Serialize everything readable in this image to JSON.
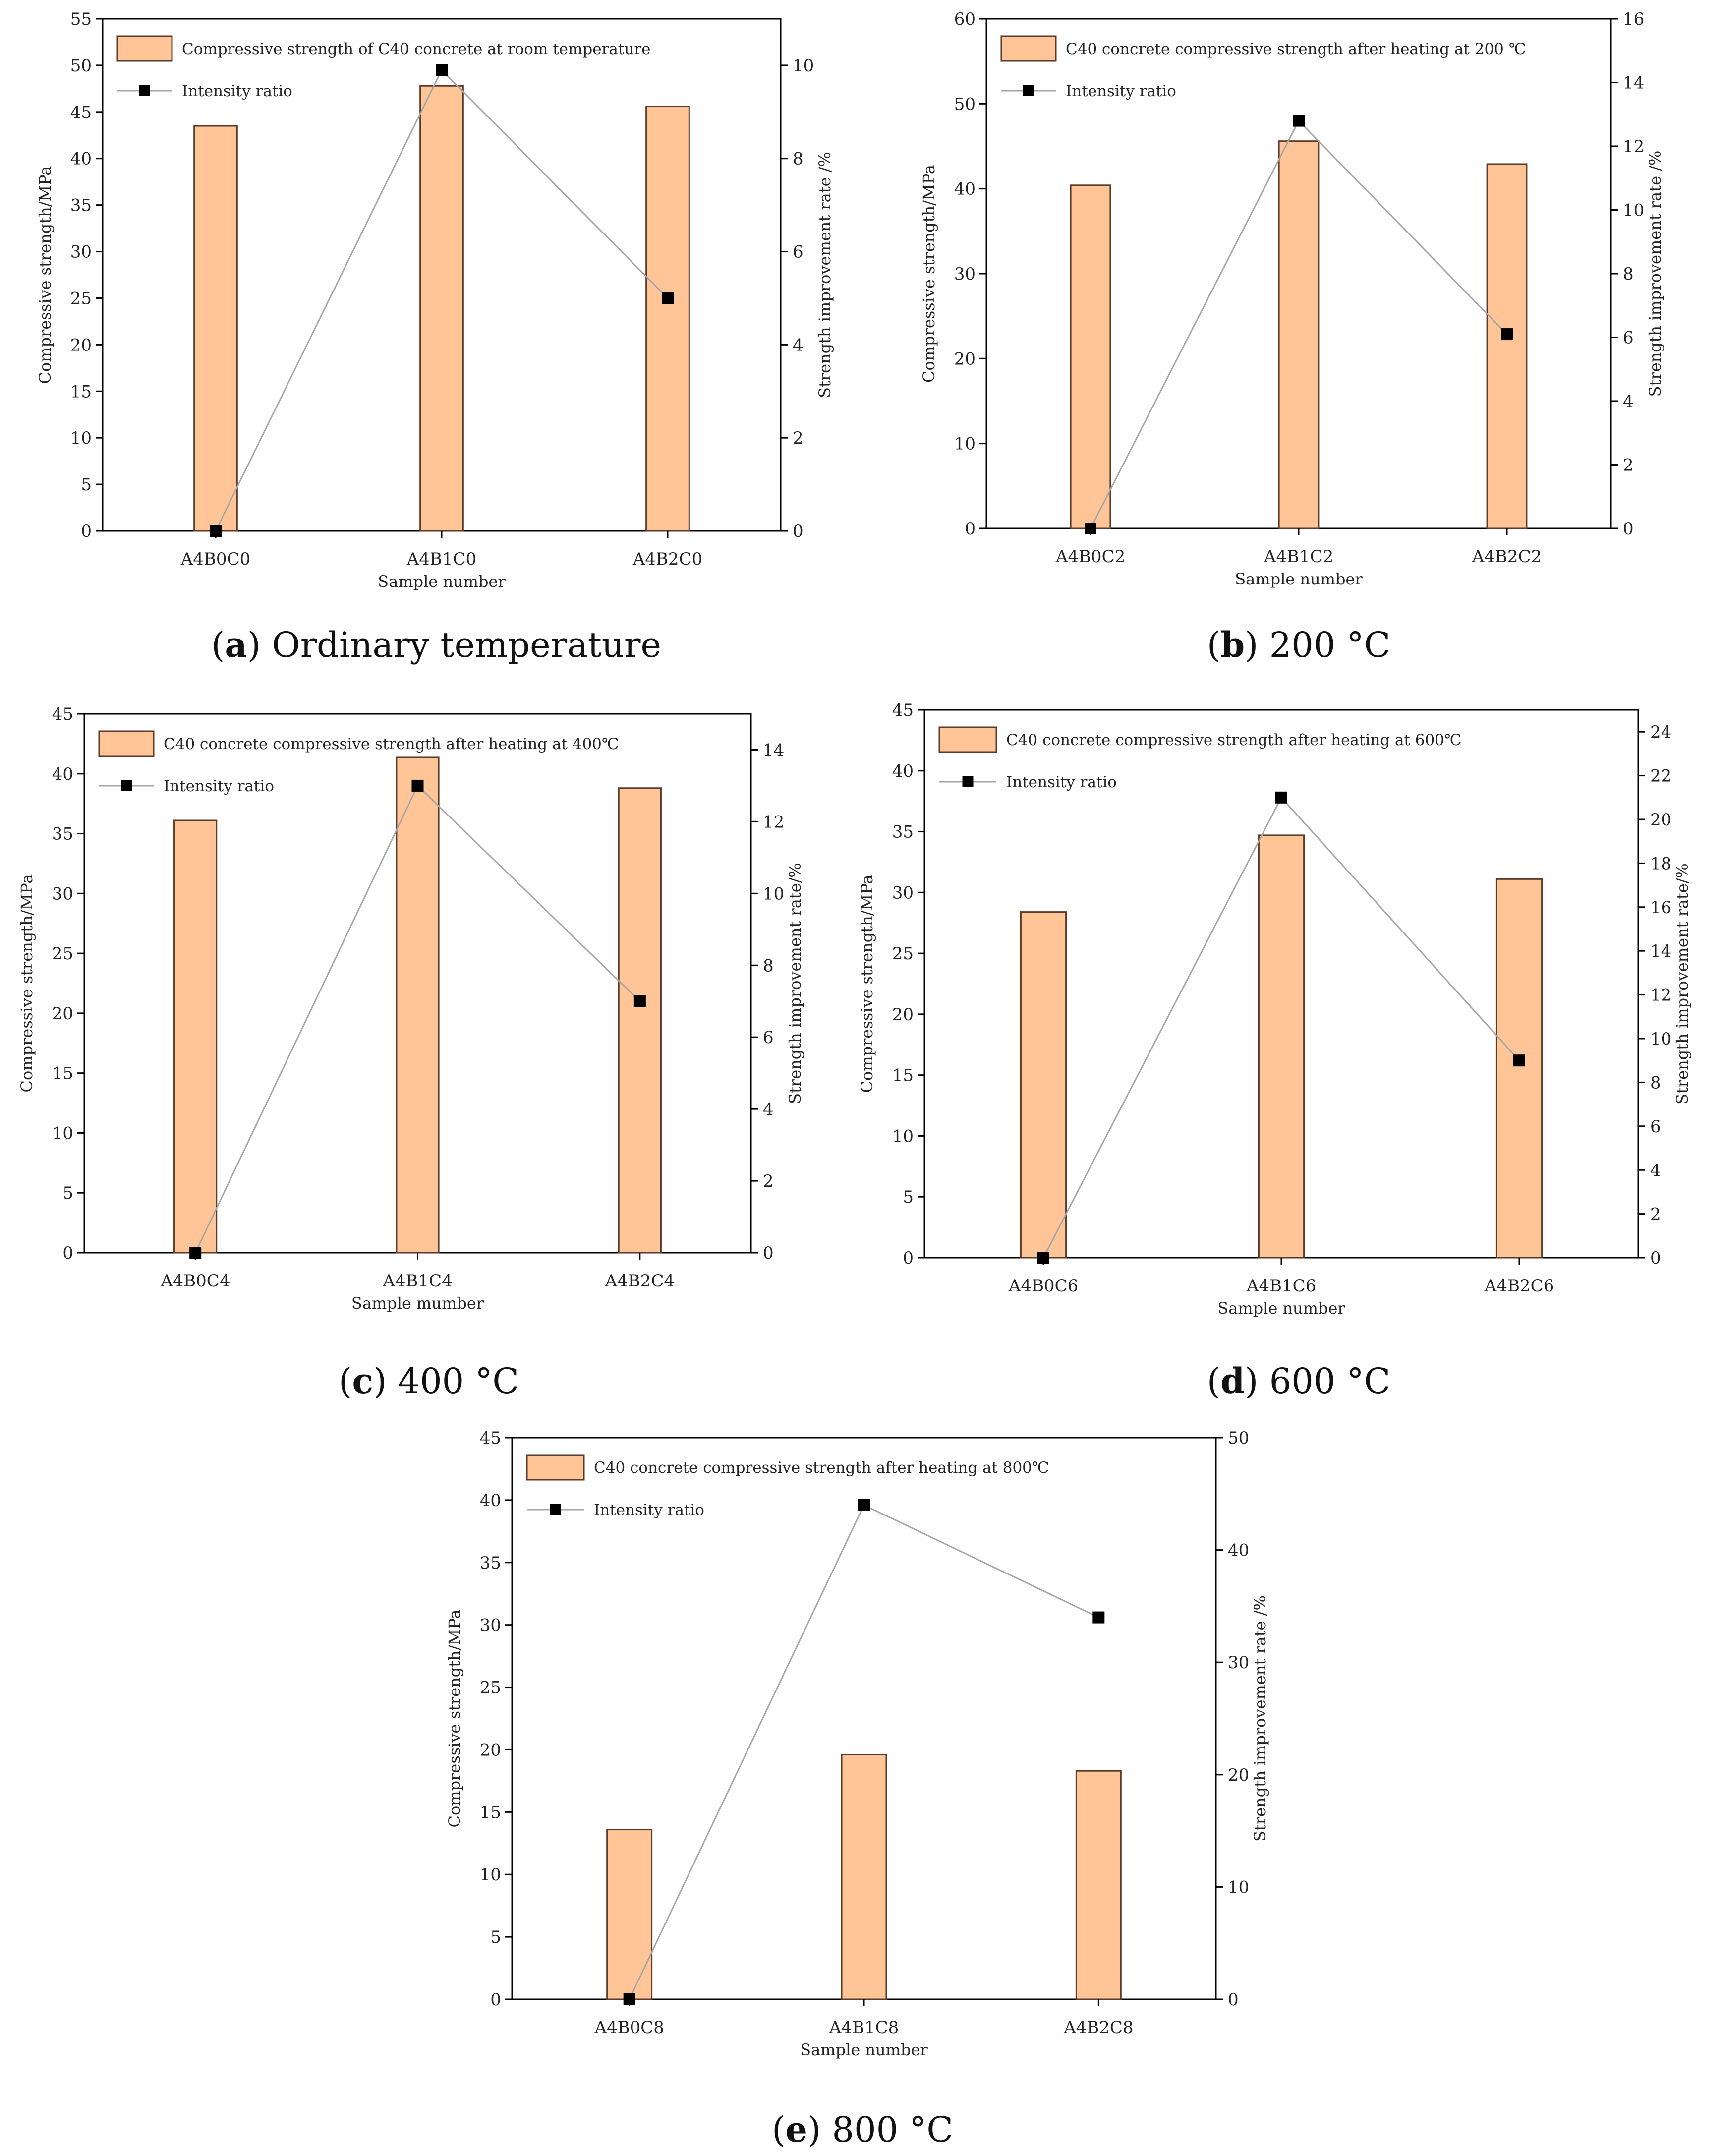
{
  "colors": {
    "bar_fill": "#ffc597",
    "bar_stroke": "#5a3a2a",
    "line": "#a6a6a6",
    "marker": "#000000",
    "axis": "#000000"
  },
  "chart_data": [
    {
      "type": "bar",
      "id": "a",
      "caption_letter": "a",
      "caption_text": " Ordinary temperature",
      "categories": [
        "A4B0C0",
        "A4B1C0",
        "A4B2C0"
      ],
      "series": [
        {
          "name": "Compressive strength of C40 concrete at room temperature",
          "type": "bar",
          "axis": "left",
          "values": [
            43.5,
            47.8,
            45.6
          ]
        },
        {
          "name": "Intensity ratio",
          "type": "line",
          "axis": "right",
          "values": [
            0,
            9.9,
            5.0
          ]
        }
      ],
      "xlabel": "Sample number",
      "ylabel": "Compressive strength/MPa",
      "y2label": "Strength improvement rate /%",
      "ylim": [
        0,
        55
      ],
      "yticks": [
        0,
        5,
        10,
        15,
        20,
        25,
        30,
        35,
        40,
        45,
        50,
        55
      ],
      "y2lim": [
        0,
        11
      ],
      "y2ticks": [
        0,
        2,
        4,
        6,
        8,
        10
      ]
    },
    {
      "type": "bar",
      "id": "b",
      "caption_letter": "b",
      "caption_text": " 200 °C",
      "categories": [
        "A4B0C2",
        "A4B1C2",
        "A4B2C2"
      ],
      "series": [
        {
          "name": "C40 concrete compressive strength after heating at 200 ℃",
          "type": "bar",
          "axis": "left",
          "values": [
            40.4,
            45.6,
            42.9
          ]
        },
        {
          "name": "Intensity ratio",
          "type": "line",
          "axis": "right",
          "values": [
            0,
            12.8,
            6.1
          ]
        }
      ],
      "xlabel": "Sample number",
      "ylabel": "Compressive strength/MPa",
      "y2label": "Strength improvement rate /%",
      "ylim": [
        0,
        60
      ],
      "yticks": [
        0,
        10,
        20,
        30,
        40,
        50,
        60
      ],
      "y2lim": [
        0,
        16
      ],
      "y2ticks": [
        0,
        2,
        4,
        6,
        8,
        10,
        12,
        14,
        16
      ]
    },
    {
      "type": "bar",
      "id": "c",
      "caption_letter": "c",
      "caption_text": " 400 °C",
      "categories": [
        "A4B0C4",
        "A4B1C4",
        "A4B2C4"
      ],
      "series": [
        {
          "name": "C40 concrete compressive strength after heating at 400℃",
          "type": "bar",
          "axis": "left",
          "values": [
            36.1,
            41.4,
            38.8
          ]
        },
        {
          "name": "Intensity ratio",
          "type": "line",
          "axis": "right",
          "values": [
            0,
            13.0,
            7.0
          ]
        }
      ],
      "xlabel": "Sample mumber",
      "ylabel": "Compressive strength/MPa",
      "y2label": "Strength improvement rate/%",
      "ylim": [
        0,
        45
      ],
      "yticks": [
        0,
        5,
        10,
        15,
        20,
        25,
        30,
        35,
        40,
        45
      ],
      "y2lim": [
        0,
        15
      ],
      "y2ticks": [
        0,
        2,
        4,
        6,
        8,
        10,
        12,
        14
      ]
    },
    {
      "type": "bar",
      "id": "d",
      "caption_letter": "d",
      "caption_text": " 600 °C",
      "categories": [
        "A4B0C6",
        "A4B1C6",
        "A4B2C6"
      ],
      "series": [
        {
          "name": "C40 concrete compressive strength after heating at 600℃",
          "type": "bar",
          "axis": "left",
          "values": [
            28.4,
            34.7,
            31.1
          ]
        },
        {
          "name": "Intensity ratio",
          "type": "line",
          "axis": "right",
          "values": [
            0,
            21.0,
            9.0
          ]
        }
      ],
      "xlabel": "Sample number",
      "ylabel": "Compressive strength/MPa",
      "y2label": "Strength improvement rate/%",
      "ylim": [
        0,
        45
      ],
      "yticks": [
        0,
        5,
        10,
        15,
        20,
        25,
        30,
        35,
        40,
        45
      ],
      "y2lim": [
        0,
        25
      ],
      "y2ticks": [
        0,
        2,
        4,
        6,
        8,
        10,
        12,
        14,
        16,
        18,
        20,
        22,
        24
      ]
    },
    {
      "type": "bar",
      "id": "e",
      "caption_letter": "e",
      "caption_text": " 800 °C",
      "categories": [
        "A4B0C8",
        "A4B1C8",
        "A4B2C8"
      ],
      "series": [
        {
          "name": "C40 concrete compressive strength after heating at 800℃",
          "type": "bar",
          "axis": "left",
          "values": [
            13.6,
            19.6,
            18.3
          ]
        },
        {
          "name": "Intensity ratio",
          "type": "line",
          "axis": "right",
          "values": [
            0,
            44.0,
            34.0
          ]
        }
      ],
      "xlabel": "Sample number",
      "ylabel": "Compressive strength/MPa",
      "y2label": "Strength improvement rate /%",
      "ylim": [
        0,
        45
      ],
      "yticks": [
        0,
        5,
        10,
        15,
        20,
        25,
        30,
        35,
        40,
        45
      ],
      "y2lim": [
        0,
        50
      ],
      "y2ticks": [
        0,
        10,
        20,
        30,
        40,
        50
      ]
    }
  ]
}
